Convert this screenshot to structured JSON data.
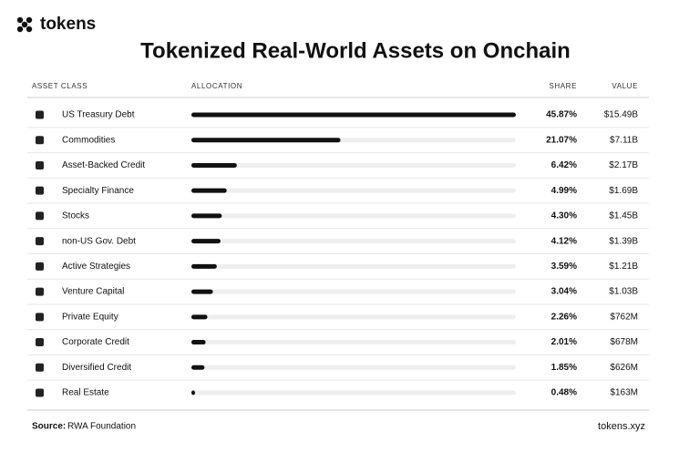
{
  "chart_data": {
    "type": "bar",
    "brand": "tokens",
    "title": "Tokenized Real-World Assets on Onchain",
    "columns": [
      "ASSET CLASS",
      "ALLOCATION",
      "SHARE",
      "VALUE"
    ],
    "categories": [
      "US Treasury Debt",
      "Commodities",
      "Asset-Backed Credit",
      "Specialty Finance",
      "Stocks",
      "non-US Gov. Debt",
      "Active Strategies",
      "Venture Capital",
      "Private Equity",
      "Corporate Credit",
      "Diversified Credit",
      "Real Estate"
    ],
    "values": [
      45.87,
      21.07,
      6.42,
      4.99,
      4.3,
      4.12,
      3.59,
      3.04,
      2.26,
      2.01,
      1.85,
      0.48
    ],
    "value_labels": [
      "45.87%",
      "21.07%",
      "6.42%",
      "4.99%",
      "4.30%",
      "4.12%",
      "3.59%",
      "3.04%",
      "2.26%",
      "2.01%",
      "1.85%",
      "0.48%"
    ],
    "amounts": [
      "$15.49B",
      "$7.11B",
      "$2.17B",
      "$1.69B",
      "$1.45B",
      "$1.39B",
      "$1.21B",
      "$1.03B",
      "$762M",
      "$678M",
      "$626M",
      "$163M"
    ],
    "xlim": [
      0,
      45.87
    ],
    "color": "#111111",
    "track_color": "#eeeeee",
    "source_label": "Source:",
    "source": "RWA Foundation",
    "site": "tokens.xyz"
  }
}
